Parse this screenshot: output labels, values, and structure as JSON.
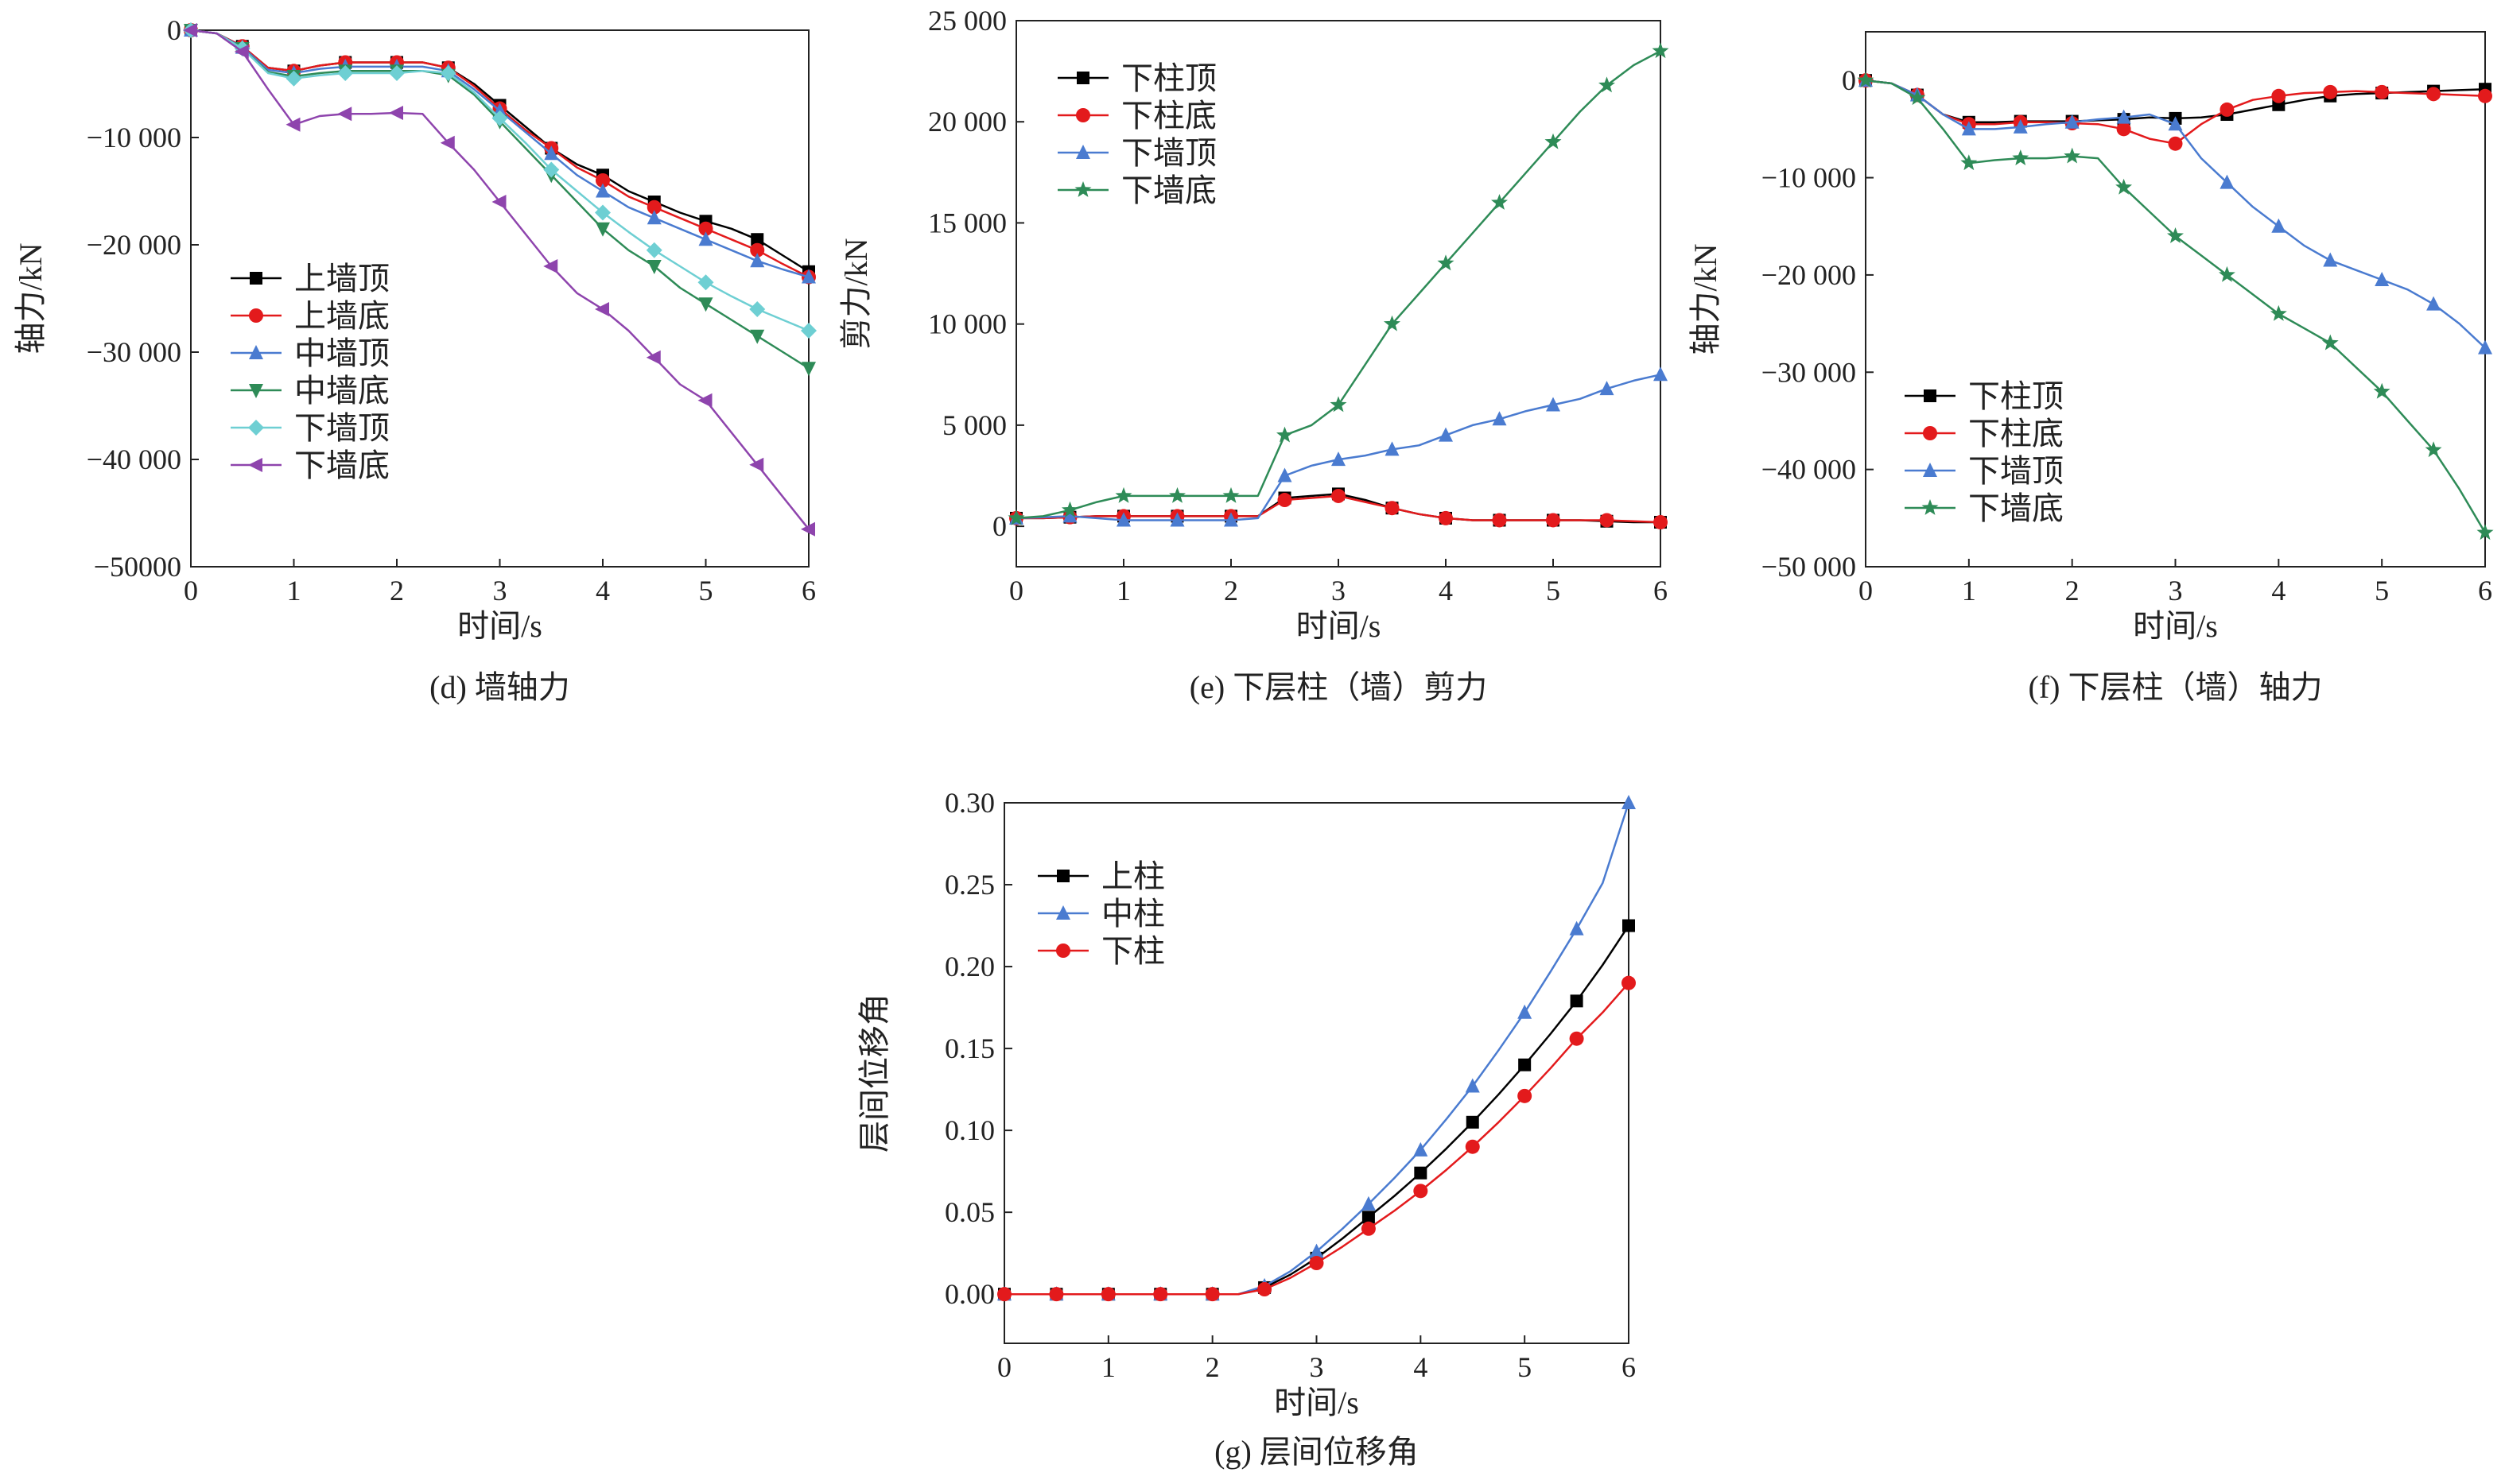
{
  "chart_data": [
    {
      "id": "d",
      "type": "line",
      "caption": "(d) 墙轴力",
      "xlabel": "时间/s",
      "ylabel": "轴力/kN",
      "xlim": [
        0,
        6
      ],
      "ylim": [
        -50000,
        0
      ],
      "xticks": [
        "0",
        "1",
        "2",
        "3",
        "4",
        "5",
        "6"
      ],
      "yticks": [
        "0",
        "−10 000",
        "−20 000",
        "−30 000",
        "−40 000",
        "−50000"
      ],
      "ytick_values": [
        0,
        -10000,
        -20000,
        -30000,
        -40000,
        -50000
      ],
      "legend_position": "middle-left",
      "grid": false,
      "x": [
        0,
        0.25,
        0.5,
        0.75,
        1.0,
        1.25,
        1.5,
        1.75,
        2.0,
        2.25,
        2.5,
        2.75,
        3.0,
        3.25,
        3.5,
        3.75,
        4.0,
        4.25,
        4.5,
        4.75,
        5.0,
        5.25,
        5.5,
        5.75,
        6.0
      ],
      "series": [
        {
          "name": "上墙顶",
          "color": "#000000",
          "marker": "square",
          "values": [
            0,
            -300,
            -1500,
            -3500,
            -3800,
            -3300,
            -3000,
            -3000,
            -3000,
            -3000,
            -3500,
            -5000,
            -7000,
            -9000,
            -11000,
            -12500,
            -13500,
            -15000,
            -16000,
            -17000,
            -17800,
            -18500,
            -19500,
            -21000,
            -22500
          ]
        },
        {
          "name": "上墙底",
          "color": "#e31a1c",
          "marker": "circle",
          "values": [
            0,
            -300,
            -1500,
            -3500,
            -3800,
            -3300,
            -3000,
            -3000,
            -3000,
            -3000,
            -3500,
            -5200,
            -7300,
            -9300,
            -11000,
            -12800,
            -14000,
            -15500,
            -16500,
            -17500,
            -18500,
            -19500,
            -20500,
            -21800,
            -23000
          ]
        },
        {
          "name": "中墙顶",
          "color": "#4a7bd0",
          "marker": "triangle-up",
          "values": [
            0,
            -300,
            -1600,
            -3700,
            -4000,
            -3600,
            -3400,
            -3400,
            -3400,
            -3400,
            -3800,
            -5500,
            -7500,
            -9500,
            -11500,
            -13500,
            -15000,
            -16500,
            -17500,
            -18500,
            -19500,
            -20500,
            -21500,
            -22300,
            -23000
          ]
        },
        {
          "name": "中墙底",
          "color": "#2e8b57",
          "marker": "triangle-down",
          "values": [
            0,
            -300,
            -1700,
            -3900,
            -4300,
            -4000,
            -3800,
            -3800,
            -3800,
            -3800,
            -4200,
            -6000,
            -8500,
            -11000,
            -13500,
            -16000,
            -18500,
            -20500,
            -22000,
            -24000,
            -25500,
            -27000,
            -28500,
            -30000,
            -31500
          ]
        },
        {
          "name": "下墙顶",
          "color": "#6ecfd3",
          "marker": "diamond",
          "values": [
            0,
            -300,
            -1700,
            -4000,
            -4500,
            -4200,
            -4000,
            -4000,
            -4000,
            -3800,
            -4000,
            -5800,
            -8200,
            -10500,
            -13000,
            -15000,
            -17000,
            -18800,
            -20500,
            -22000,
            -23500,
            -24800,
            -26000,
            -27000,
            -28000
          ]
        },
        {
          "name": "下墙底",
          "color": "#8e44ad",
          "marker": "triangle-left",
          "values": [
            0,
            -300,
            -2000,
            -5500,
            -8800,
            -8000,
            -7800,
            -7800,
            -7700,
            -7800,
            -10500,
            -13000,
            -16000,
            -19000,
            -22000,
            -24500,
            -26000,
            -28000,
            -30500,
            -33000,
            -34500,
            -37500,
            -40500,
            -43500,
            -46500
          ]
        }
      ]
    },
    {
      "id": "e",
      "type": "line",
      "caption": "(e) 下层柱（墙）剪力",
      "xlabel": "时间/s",
      "ylabel": "剪力/kN",
      "xlim": [
        0,
        6
      ],
      "ylim": [
        -2000,
        25000
      ],
      "xticks": [
        "0",
        "1",
        "2",
        "3",
        "4",
        "5",
        "6"
      ],
      "yticks": [
        "0",
        "5 000",
        "10 000",
        "15 000",
        "20 000",
        "25 000"
      ],
      "ytick_values": [
        0,
        5000,
        10000,
        15000,
        20000,
        25000
      ],
      "legend_position": "top-left",
      "grid": false,
      "x": [
        0,
        0.25,
        0.5,
        0.75,
        1.0,
        1.25,
        1.5,
        1.75,
        2.0,
        2.25,
        2.5,
        2.75,
        3.0,
        3.25,
        3.5,
        3.75,
        4.0,
        4.25,
        4.5,
        4.75,
        5.0,
        5.25,
        5.5,
        5.75,
        6.0
      ],
      "series": [
        {
          "name": "下柱顶",
          "color": "#000000",
          "marker": "square",
          "values": [
            400,
            400,
            450,
            500,
            500,
            500,
            500,
            500,
            500,
            500,
            1400,
            1500,
            1600,
            1300,
            900,
            600,
            400,
            300,
            300,
            300,
            300,
            300,
            250,
            200,
            200
          ]
        },
        {
          "name": "下柱底",
          "color": "#e31a1c",
          "marker": "circle",
          "values": [
            400,
            400,
            450,
            500,
            500,
            500,
            500,
            500,
            500,
            500,
            1300,
            1400,
            1500,
            1200,
            900,
            600,
            400,
            300,
            300,
            300,
            300,
            300,
            300,
            250,
            200
          ]
        },
        {
          "name": "下墙顶",
          "color": "#4a7bd0",
          "marker": "triangle-up",
          "values": [
            400,
            450,
            500,
            400,
            300,
            300,
            300,
            300,
            300,
            400,
            2500,
            3000,
            3300,
            3500,
            3800,
            4000,
            4500,
            5000,
            5300,
            5700,
            6000,
            6300,
            6800,
            7200,
            7500
          ]
        },
        {
          "name": "下墙底",
          "color": "#2e8b57",
          "marker": "star",
          "values": [
            400,
            500,
            800,
            1200,
            1500,
            1500,
            1500,
            1500,
            1500,
            1500,
            4500,
            5000,
            6000,
            8000,
            10000,
            11500,
            13000,
            14500,
            16000,
            17500,
            19000,
            20500,
            21800,
            22800,
            23500
          ]
        }
      ]
    },
    {
      "id": "f",
      "type": "line",
      "caption": "(f) 下层柱（墙）轴力",
      "xlabel": "时间/s",
      "ylabel": "轴力/kN",
      "xlim": [
        0,
        6
      ],
      "ylim": [
        -50000,
        5000
      ],
      "xticks": [
        "0",
        "1",
        "2",
        "3",
        "4",
        "5",
        "6"
      ],
      "yticks": [
        "0",
        "−10 000",
        "−20 000",
        "−30 000",
        "−40 000",
        "−50 000"
      ],
      "ytick_values": [
        0,
        -10000,
        -20000,
        -30000,
        -40000,
        -50000
      ],
      "legend_position": "bottom-left",
      "grid": false,
      "x": [
        0,
        0.25,
        0.5,
        0.75,
        1.0,
        1.25,
        1.5,
        1.75,
        2.0,
        2.25,
        2.5,
        2.75,
        3.0,
        3.25,
        3.5,
        3.75,
        4.0,
        4.25,
        4.5,
        4.75,
        5.0,
        5.25,
        5.5,
        5.75,
        6.0
      ],
      "series": [
        {
          "name": "下柱顶",
          "color": "#000000",
          "marker": "square",
          "values": [
            0,
            -300,
            -1500,
            -3500,
            -4300,
            -4300,
            -4200,
            -4200,
            -4200,
            -4100,
            -4000,
            -3800,
            -3900,
            -3800,
            -3500,
            -3000,
            -2500,
            -2000,
            -1600,
            -1400,
            -1300,
            -1200,
            -1100,
            -1000,
            -900
          ]
        },
        {
          "name": "下柱底",
          "color": "#e31a1c",
          "marker": "circle",
          "values": [
            0,
            -300,
            -1500,
            -3500,
            -4500,
            -4500,
            -4300,
            -4300,
            -4400,
            -4500,
            -5000,
            -6000,
            -6500,
            -4500,
            -3000,
            -2000,
            -1600,
            -1300,
            -1200,
            -1100,
            -1200,
            -1300,
            -1400,
            -1500,
            -1600
          ]
        },
        {
          "name": "下墙顶",
          "color": "#4a7bd0",
          "marker": "triangle-up",
          "values": [
            0,
            -300,
            -1500,
            -3500,
            -5000,
            -5000,
            -4800,
            -4500,
            -4300,
            -4000,
            -3800,
            -3500,
            -4500,
            -8000,
            -10500,
            -13000,
            -15000,
            -17000,
            -18500,
            -19500,
            -20500,
            -21500,
            -23000,
            -25000,
            -27500
          ]
        },
        {
          "name": "下墙底",
          "color": "#2e8b57",
          "marker": "star",
          "values": [
            0,
            -300,
            -1800,
            -5000,
            -8500,
            -8200,
            -8000,
            -8000,
            -7800,
            -8000,
            -11000,
            -13500,
            -16000,
            -18000,
            -20000,
            -22000,
            -24000,
            -25500,
            -27000,
            -29500,
            -32000,
            -35000,
            -38000,
            -42000,
            -46500
          ]
        }
      ]
    },
    {
      "id": "g",
      "type": "line",
      "caption": "(g) 层间位移角",
      "xlabel": "时间/s",
      "ylabel": "层间位移角",
      "xlim": [
        0,
        6
      ],
      "ylim": [
        -0.03,
        0.3
      ],
      "xticks": [
        "0",
        "1",
        "2",
        "3",
        "4",
        "5",
        "6"
      ],
      "yticks": [
        "0.00",
        "0.05",
        "0.10",
        "0.15",
        "0.20",
        "0.25",
        "0.30"
      ],
      "ytick_values": [
        0,
        0.05,
        0.1,
        0.15,
        0.2,
        0.25,
        0.3
      ],
      "legend_position": "top-left",
      "grid": false,
      "x": [
        0,
        0.25,
        0.5,
        0.75,
        1.0,
        1.25,
        1.5,
        1.75,
        2.0,
        2.25,
        2.5,
        2.75,
        3.0,
        3.25,
        3.5,
        3.75,
        4.0,
        4.25,
        4.5,
        4.75,
        5.0,
        5.25,
        5.5,
        5.75,
        6.0
      ],
      "series": [
        {
          "name": "上柱",
          "color": "#000000",
          "marker": "square",
          "values": [
            0,
            0,
            0,
            0,
            0,
            0,
            0,
            0,
            0,
            0,
            0.004,
            0.012,
            0.022,
            0.034,
            0.047,
            0.06,
            0.074,
            0.089,
            0.105,
            0.122,
            0.14,
            0.159,
            0.179,
            0.201,
            0.225
          ]
        },
        {
          "name": "中柱",
          "color": "#4a7bd0",
          "marker": "triangle-up",
          "values": [
            0,
            0,
            0,
            0,
            0,
            0,
            0,
            0,
            0,
            0,
            0.005,
            0.014,
            0.026,
            0.04,
            0.055,
            0.071,
            0.088,
            0.107,
            0.127,
            0.149,
            0.172,
            0.197,
            0.223,
            0.251,
            0.3
          ]
        },
        {
          "name": "下柱",
          "color": "#e31a1c",
          "marker": "circle",
          "values": [
            0,
            0,
            0,
            0,
            0,
            0,
            0,
            0,
            0,
            0,
            0.003,
            0.01,
            0.019,
            0.029,
            0.04,
            0.051,
            0.063,
            0.076,
            0.09,
            0.105,
            0.121,
            0.138,
            0.156,
            0.172,
            0.19
          ]
        }
      ]
    }
  ]
}
